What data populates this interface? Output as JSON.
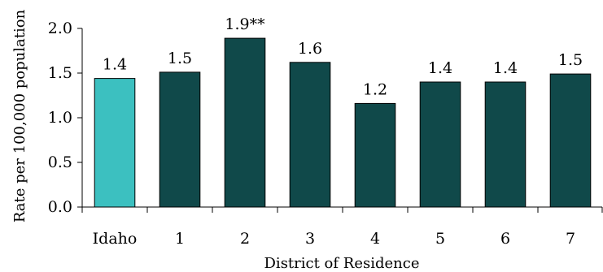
{
  "chart_data": {
    "type": "bar",
    "categories": [
      "Idaho",
      "1",
      "2",
      "3",
      "4",
      "5",
      "6",
      "7"
    ],
    "values": [
      1.44,
      1.51,
      1.89,
      1.62,
      1.16,
      1.4,
      1.4,
      1.49
    ],
    "data_labels": [
      "1.4",
      "1.5",
      "1.9**",
      "1.6",
      "1.2",
      "1.4",
      "1.4",
      "1.5"
    ],
    "xlabel": "District of Residence",
    "ylabel": "Rate per 100,000 population",
    "ylim": [
      0,
      2.0
    ],
    "yticks": [
      "0.0",
      "0.5",
      "1.0",
      "1.5",
      "2.0"
    ],
    "grid": false,
    "legend": "none",
    "colors": {
      "highlight": "#3cc0c0",
      "default": "#10494a",
      "outline": "#000000"
    }
  }
}
